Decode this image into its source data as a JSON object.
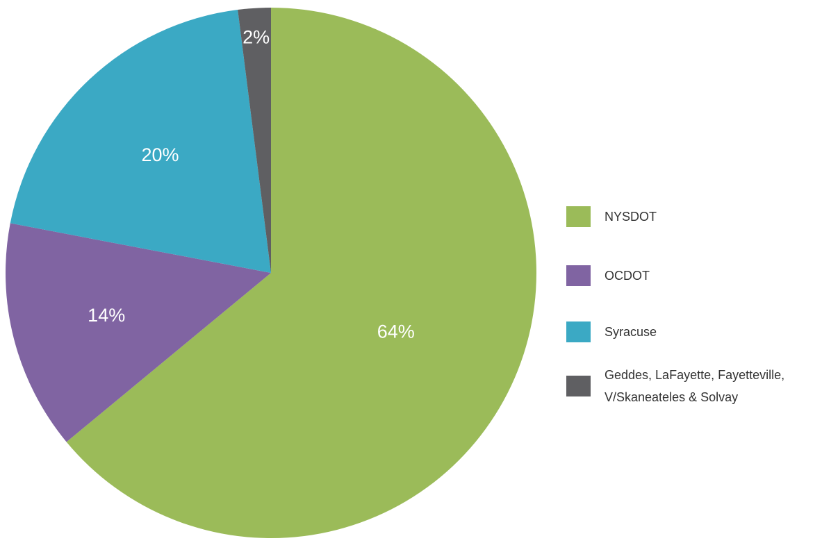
{
  "chart_data": {
    "type": "pie",
    "start_angle_deg": 0,
    "direction": "clockwise",
    "legend_position": "right",
    "slices": [
      {
        "label": "NYSDOT",
        "value": 64,
        "display": "64%",
        "color": "#9BBB59"
      },
      {
        "label": "OCDOT",
        "value": 14,
        "display": "14%",
        "color": "#8064A2"
      },
      {
        "label": "Syracuse",
        "value": 20,
        "display": "20%",
        "color": "#3BA9C4"
      },
      {
        "label": "Geddes, LaFayette, Fayetteville,\nV/Skaneateles & Solvay",
        "value": 2,
        "display": "2%",
        "color": "#5F5F62"
      }
    ]
  }
}
